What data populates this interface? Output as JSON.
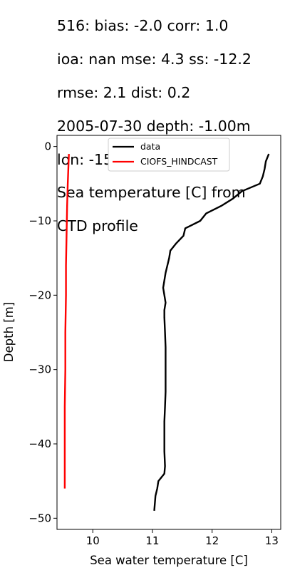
{
  "title_lines": [
    "516: bias: -2.0  corr: 1.0",
    "ioa: nan  mse: 4.3  ss: -12.2",
    "rmse: 2.1  dist: 0.2",
    "2005-07-30 depth: -1.00m",
    "lon: -151.97 lat: 59.40",
    "Sea temperature [C] from",
    "CTD profile"
  ],
  "chart_data": {
    "type": "line",
    "xlabel": "Sea water temperature [C]",
    "ylabel": "Depth [m]",
    "xlim": [
      9.4,
      13.15
    ],
    "ylim": [
      -51.5,
      1.5
    ],
    "xticks": [
      10,
      11,
      12,
      13
    ],
    "yticks": [
      0,
      -10,
      -20,
      -30,
      -40,
      -50
    ],
    "grid": false,
    "legend": "upper center",
    "series": [
      {
        "name": "data",
        "color": "#000000",
        "x": [
          12.95,
          12.9,
          12.88,
          12.85,
          12.8,
          12.5,
          12.35,
          12.15,
          11.9,
          11.8,
          11.65,
          11.55,
          11.52,
          11.4,
          11.3,
          11.28,
          11.25,
          11.22,
          11.2,
          11.18,
          11.2,
          11.22,
          11.2,
          11.2,
          11.21,
          11.22,
          11.22,
          11.22,
          11.22,
          11.21,
          11.2,
          11.2,
          11.2,
          11.21,
          11.2,
          11.1,
          11.08,
          11.05,
          11.03
        ],
        "y": [
          -1,
          -2,
          -3,
          -4,
          -5,
          -6,
          -7,
          -8,
          -9,
          -10,
          -10.6,
          -11,
          -12,
          -13,
          -14,
          -15,
          -16,
          -17,
          -18,
          -19,
          -20,
          -21,
          -22,
          -23,
          -25,
          -27,
          -29,
          -31,
          -33,
          -35,
          -37,
          -39,
          -41,
          -43,
          -44,
          -45,
          -46,
          -47,
          -49
        ]
      },
      {
        "name": "CIOFS_HINDCAST",
        "color": "#ff0000",
        "x": [
          9.6,
          9.59,
          9.58,
          9.57,
          9.56,
          9.55,
          9.55,
          9.54,
          9.54,
          9.53,
          9.53,
          9.53,
          9.53
        ],
        "y": [
          -1,
          -3,
          -5,
          -8,
          -12,
          -16,
          -20,
          -25,
          -30,
          -35,
          -40,
          -44,
          -46
        ]
      }
    ]
  }
}
